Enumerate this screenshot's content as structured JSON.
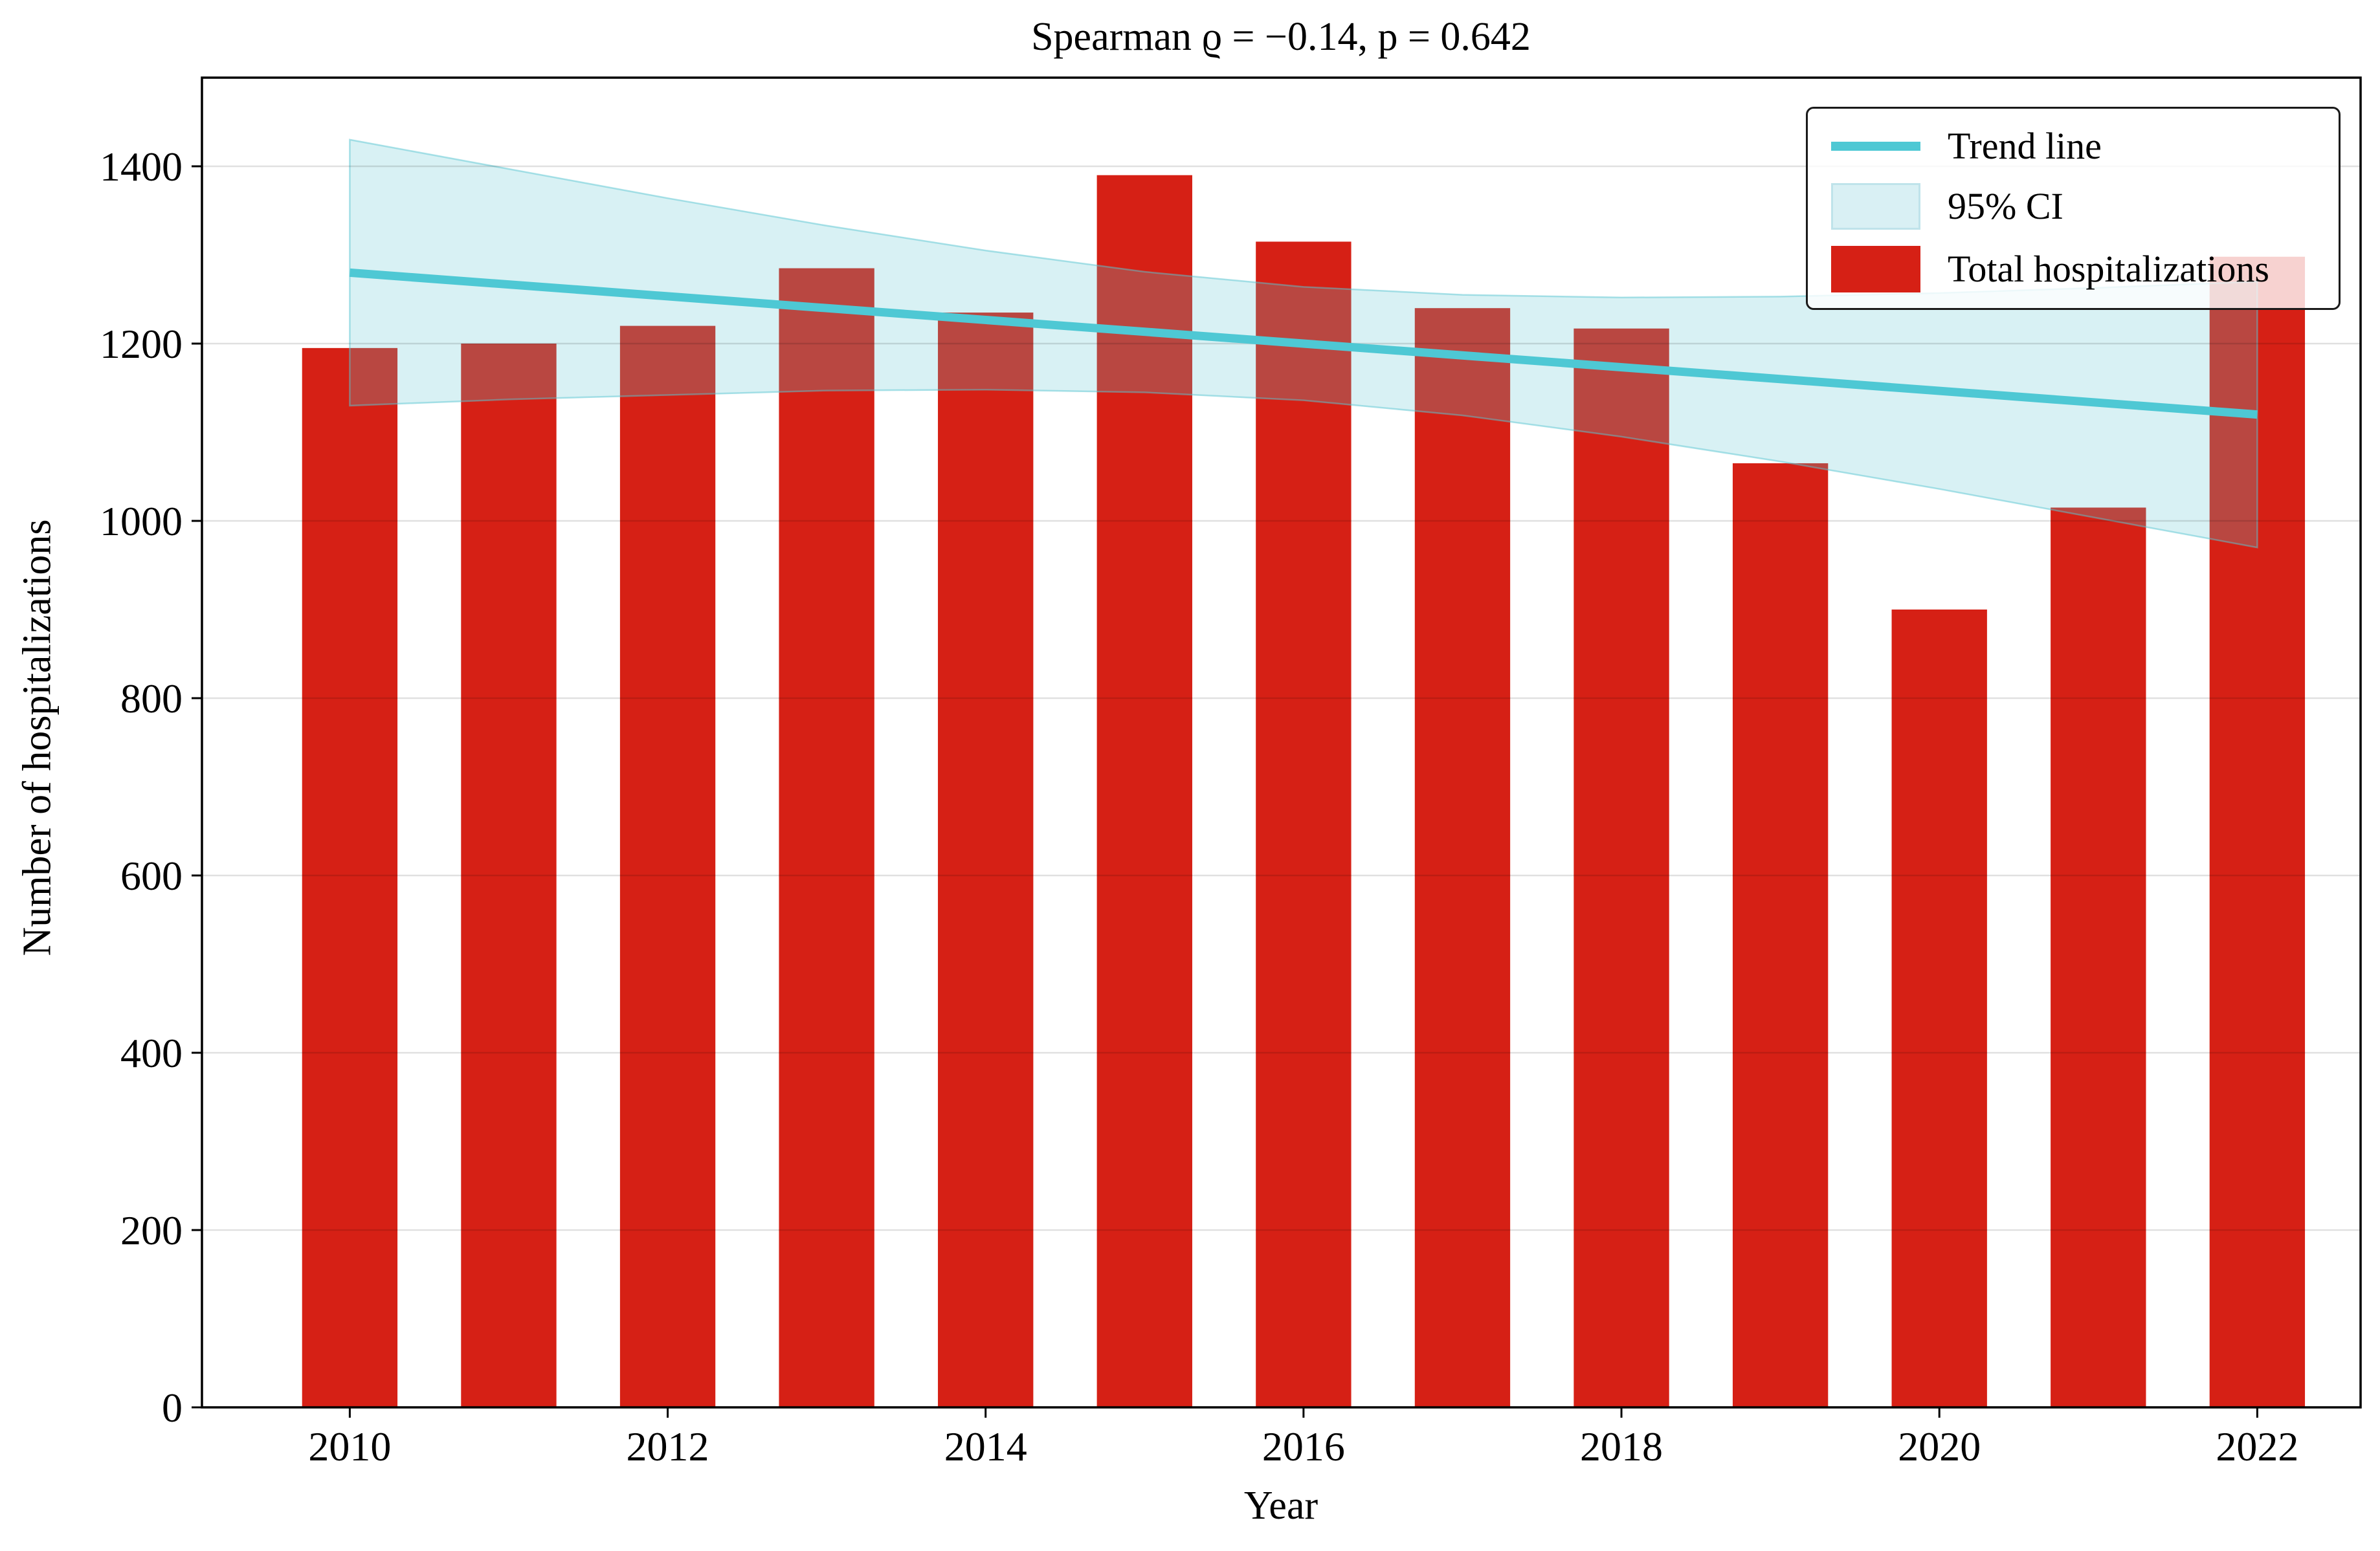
{
  "chart_data": {
    "type": "bar",
    "title": "Spearman ϱ = −0.14, p = 0.642",
    "xlabel": "Year",
    "ylabel": "Number of hospitalizations",
    "categories": [
      2010,
      2011,
      2012,
      2013,
      2014,
      2015,
      2016,
      2017,
      2018,
      2019,
      2020,
      2021,
      2022
    ],
    "series": [
      {
        "name": "Total hospitalizations",
        "values": [
          1195,
          1200,
          1220,
          1285,
          1235,
          1390,
          1315,
          1240,
          1217,
          1065,
          900,
          1015,
          1298
        ]
      }
    ],
    "trend_line": {
      "name": "Trend line",
      "x": [
        2010,
        2022
      ],
      "y": [
        1280,
        1120
      ]
    },
    "ci_band": {
      "name": "95% CI",
      "x": [
        2010,
        2011,
        2012,
        2013,
        2014,
        2015,
        2016,
        2017,
        2018,
        2019,
        2020,
        2021,
        2022
      ],
      "upper": [
        1430,
        1397,
        1364,
        1333,
        1305,
        1281,
        1264,
        1255,
        1252,
        1253,
        1257,
        1263,
        1270
      ],
      "lower": [
        1130,
        1137,
        1142,
        1147,
        1148,
        1145,
        1136,
        1119,
        1095,
        1067,
        1036,
        1003,
        970
      ]
    },
    "xticks": [
      2010,
      2012,
      2014,
      2016,
      2018,
      2020,
      2022
    ],
    "yticks": [
      0,
      200,
      400,
      600,
      800,
      1000,
      1200,
      1400
    ],
    "xlim": [
      2009.07,
      2022.65
    ],
    "ylim": [
      0,
      1500
    ],
    "bar_width": 0.6,
    "grid": "horizontal",
    "legend_position": "upper right",
    "colors": {
      "bar": "#d62015",
      "trend": "#4ec8d4",
      "ci_fill": "rgba(90,198,209,0.24)",
      "ci_edge": "rgba(90,198,209,0.5)",
      "ci_swatch_fill": "#d9f0f4",
      "ci_swatch_edge": "#bfe3ea",
      "grid": "rgba(0,0,0,0.12)",
      "axis": "#000000",
      "legend_bg": "rgba(255,255,255,0.8)"
    }
  },
  "legend": {
    "items": [
      {
        "label": "Trend line"
      },
      {
        "label": "95% CI"
      },
      {
        "label": "Total hospitalizations"
      }
    ]
  }
}
